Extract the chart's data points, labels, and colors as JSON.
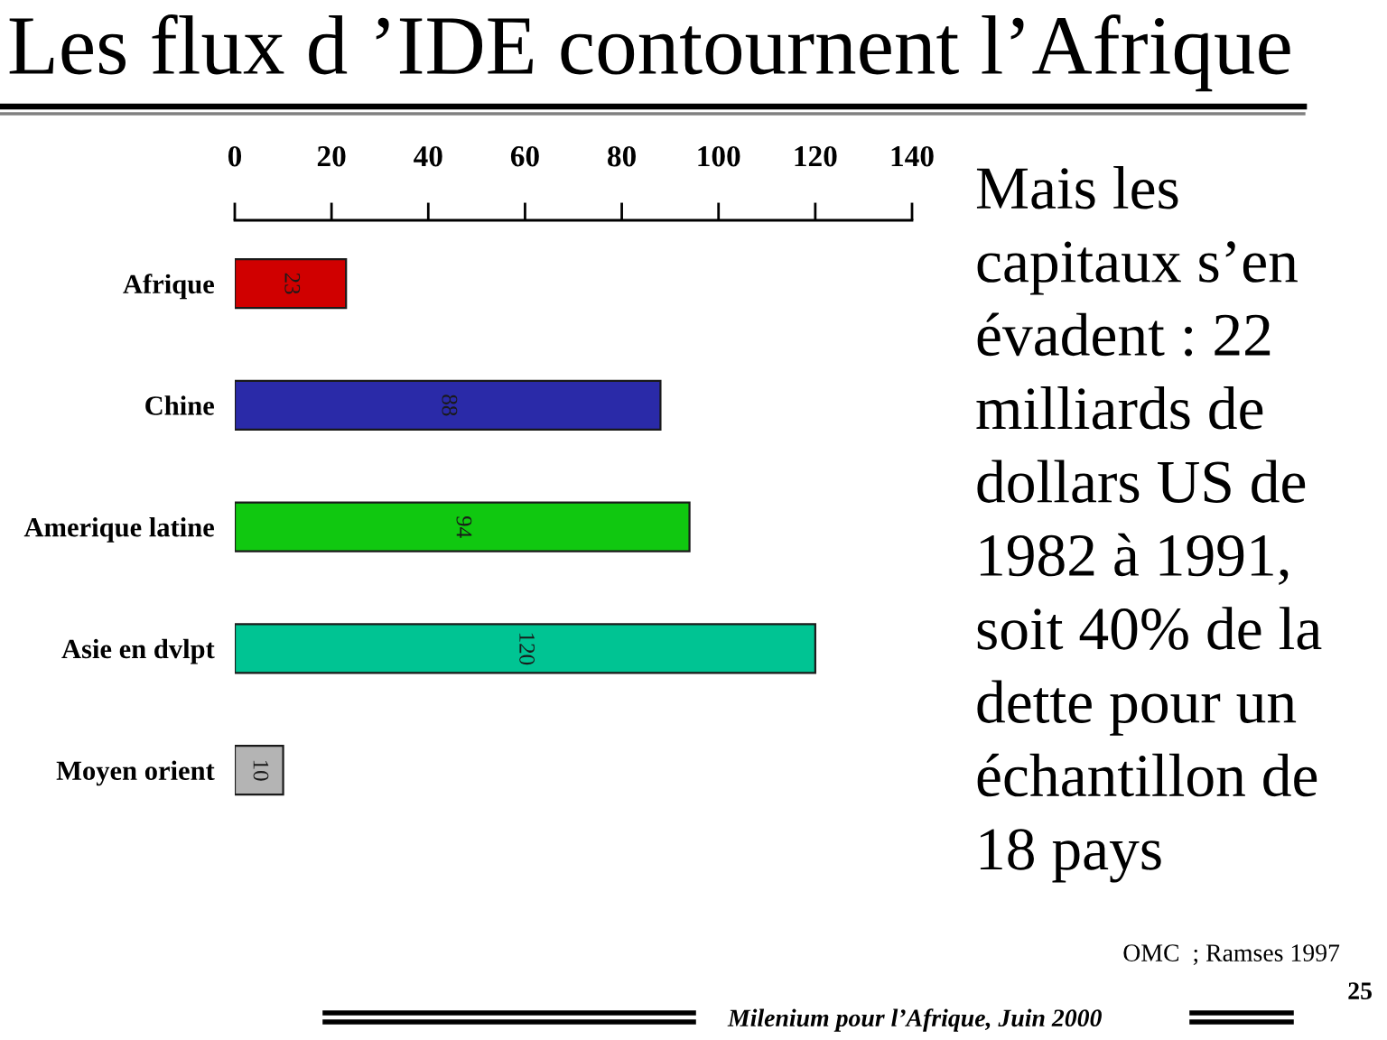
{
  "chart_data": {
    "type": "bar",
    "orientation": "horizontal",
    "title": "Les flux d ’IDE contournent l’Afrique",
    "categories": [
      "Afrique",
      "Chine",
      "Amerique latine",
      "Asie en dvlpt",
      "Moyen orient"
    ],
    "values": [
      23,
      88,
      94,
      120,
      10
    ],
    "colors": [
      "#d00000",
      "#2a2aa8",
      "#10c810",
      "#00c493",
      "#b4b4b4"
    ],
    "xlim": [
      0,
      140
    ],
    "xticks": [
      0,
      20,
      40,
      60,
      80,
      100,
      120,
      140
    ],
    "data_labels": true,
    "annotations": [
      "Mais les\ncapitaux s’en\névadent : 22\nmilliards de\ndollars US de\n1982 à 1991,\nsoit 40% de la\ndette pour un\néchantillon de\n18 pays",
      "OMC  ; Ramses 1997",
      "Milenium pour l’Afrique, Juin 2000",
      "25"
    ]
  }
}
